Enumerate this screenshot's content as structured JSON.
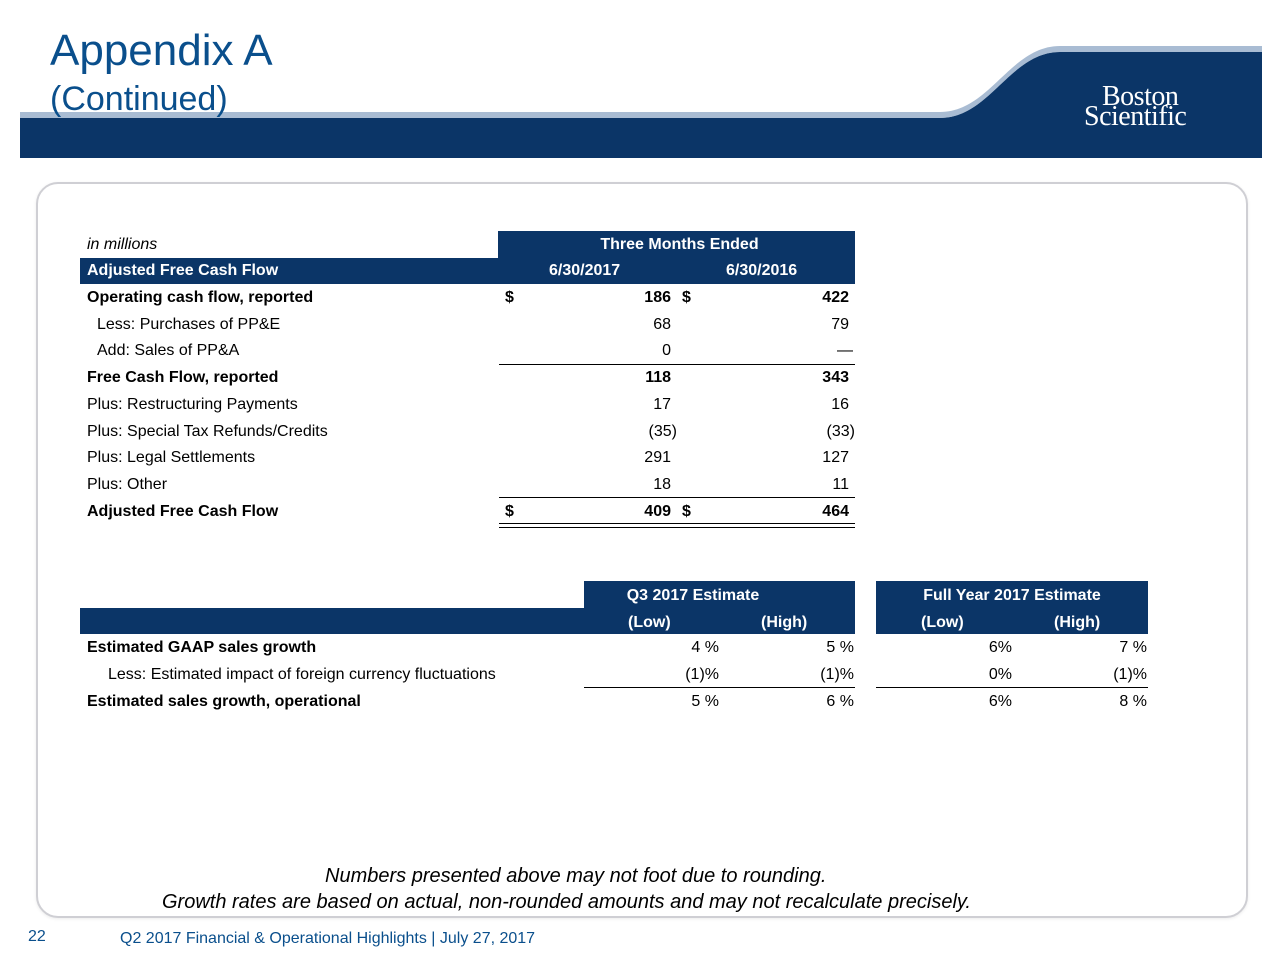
{
  "header": {
    "title": "Appendix A",
    "subtitle": "(Continued)",
    "logo_line1": "Boston",
    "logo_line2": "Scientific"
  },
  "table1": {
    "unit_label": "in millions",
    "period_header": "Three Months Ended",
    "row_header": "Adjusted Free Cash Flow",
    "col1": "6/30/2017",
    "col2": "6/30/2016",
    "rows": [
      {
        "label": "Operating cash flow, reported",
        "cur1": "$",
        "v1": "186",
        "cur2": "$",
        "v2": "422"
      },
      {
        "label": "Less: Purchases of PP&E",
        "v1": "68",
        "v2": "79"
      },
      {
        "label": "Add: Sales of PP&A",
        "v1": "0",
        "v2": "—"
      },
      {
        "label": "Free Cash Flow, reported",
        "v1": "118",
        "v2": "343"
      },
      {
        "label": "Plus: Restructuring Payments",
        "v1": "17",
        "v2": "16"
      },
      {
        "label": "Plus: Special Tax Refunds/Credits",
        "v1": "(35)",
        "v2": "(33)"
      },
      {
        "label": "Plus: Legal Settlements",
        "v1": "291",
        "v2": "127"
      },
      {
        "label": "Plus: Other",
        "v1": "18",
        "v2": "11"
      },
      {
        "label": "Adjusted Free Cash Flow",
        "cur1": "$",
        "v1": "409",
        "cur2": "$",
        "v2": "464"
      }
    ]
  },
  "table2": {
    "group1": "Q3 2017 Estimate",
    "group2": "Full Year 2017 Estimate",
    "low": "(Low)",
    "high": "(High)",
    "rows": [
      {
        "label": "Estimated GAAP sales growth",
        "q_low": "4 %",
        "q_high": "5 %",
        "fy_low": "6%",
        "fy_high": "7 %"
      },
      {
        "label": "Less: Estimated impact of foreign currency fluctuations",
        "q_low": "(1)%",
        "q_high": "(1)%",
        "fy_low": "0%",
        "fy_high": "(1)%"
      },
      {
        "label": "Estimated sales growth, operational",
        "q_low": "5 %",
        "q_high": "6 %",
        "fy_low": "6%",
        "fy_high": "8 %"
      }
    ]
  },
  "notes": {
    "line1": "Numbers presented above may not foot due to rounding.",
    "line2": "Growth rates are based on actual, non-rounded amounts and may not recalculate precisely."
  },
  "footer": {
    "page_number": "22",
    "text": "Q2 2017 Financial & Operational Highlights | July 27, 2017"
  },
  "colors": {
    "navy": "#0b3567",
    "title_blue": "#0a4f8c"
  }
}
